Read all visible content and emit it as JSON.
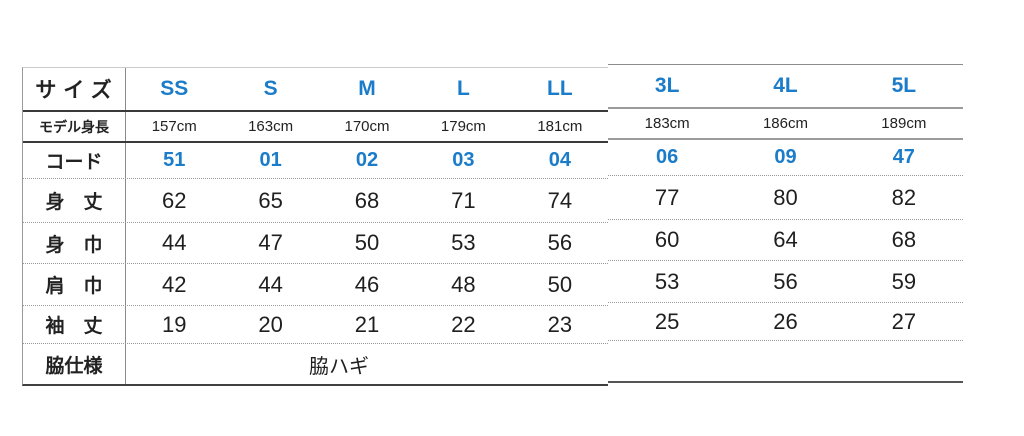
{
  "colors": {
    "accent": "#1b7cc9",
    "text": "#2a2a2a"
  },
  "size_chart": {
    "corner_label": "サイズ",
    "sizes": [
      "SS",
      "S",
      "M",
      "L",
      "LL",
      "3L",
      "4L",
      "5L"
    ],
    "model_height": {
      "label": "モデル身長",
      "values": [
        "157cm",
        "163cm",
        "170cm",
        "179cm",
        "181cm",
        "183cm",
        "186cm",
        "189cm"
      ]
    },
    "code": {
      "label": "コード",
      "values": [
        "51",
        "01",
        "02",
        "03",
        "04",
        "06",
        "09",
        "47"
      ]
    },
    "measurements": [
      {
        "label": "身　丈",
        "values": [
          "62",
          "65",
          "68",
          "71",
          "74",
          "77",
          "80",
          "82"
        ]
      },
      {
        "label": "身　巾",
        "values": [
          "44",
          "47",
          "50",
          "53",
          "56",
          "60",
          "64",
          "68"
        ]
      },
      {
        "label": "肩　巾",
        "values": [
          "42",
          "44",
          "46",
          "48",
          "50",
          "53",
          "56",
          "59"
        ]
      },
      {
        "label": "袖　丈",
        "values": [
          "19",
          "20",
          "21",
          "22",
          "23",
          "25",
          "26",
          "27"
        ]
      }
    ],
    "side_spec": {
      "label": "脇仕様",
      "value": "脇ハギ"
    }
  }
}
